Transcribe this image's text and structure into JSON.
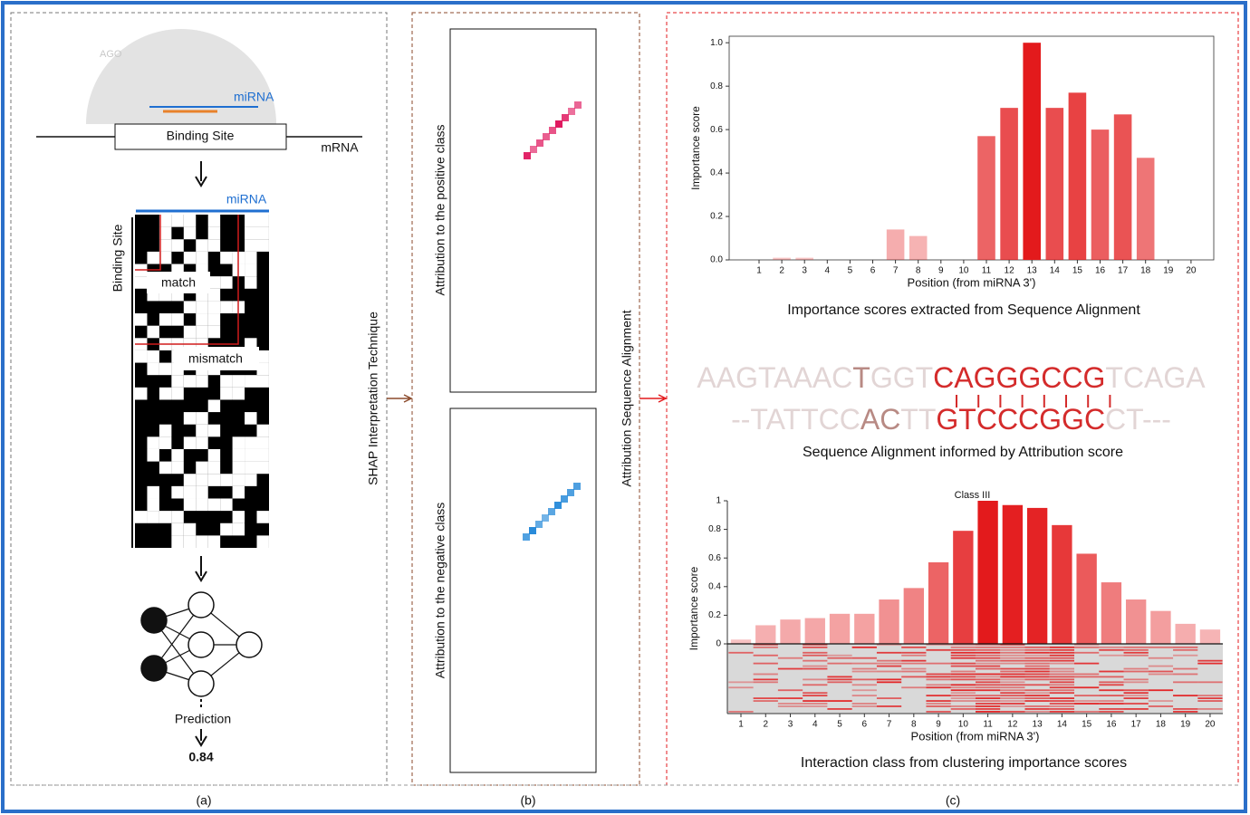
{
  "panel_a": {
    "ago": "AGO",
    "mirna": "miRNA",
    "binding_site": "Binding Site",
    "mrna": "mRNA",
    "matrix_mirna": "miRNA",
    "matrix_binding_site": "Binding Site",
    "match": "match",
    "mismatch": "mismatch",
    "prediction": "Prediction",
    "prediction_value": 0.84,
    "label": "(a)"
  },
  "shap_label": "SHAP Interpretation Technique",
  "panel_b": {
    "positive": "Attribution to the positive class",
    "negative": "Attribution to the negative class",
    "label": "(b)"
  },
  "alignment_label": "Attribution Sequence Alignment",
  "panel_c": {
    "caption_top": "Importance scores extracted from Sequence Alignment",
    "alignment": {
      "top": [
        {
          "text": "AAGTAAAC",
          "style": "faded"
        },
        {
          "text": "T",
          "style": "weak"
        },
        {
          "text": "GGT",
          "style": "faded"
        },
        {
          "text": "CAGGGCCG",
          "style": "strong"
        },
        {
          "text": "TCAGA",
          "style": "faded"
        }
      ],
      "bottom": [
        {
          "text": "--TATTCC",
          "style": "faded"
        },
        {
          "text": "AC",
          "style": "weak"
        },
        {
          "text": "TT",
          "style": "faded"
        },
        {
          "text": "GTCCCGGC",
          "style": "strong"
        },
        {
          "text": "CT---",
          "style": "faded"
        }
      ]
    },
    "caption_alignment": "Sequence Alignment informed by Attribution score",
    "caption_bottom": "Interaction class from clustering importance scores",
    "label": "(c)"
  },
  "chart_data": [
    {
      "type": "bar",
      "xlabel": "Position (from miRNA 3')",
      "ylabel": "Importance score",
      "color": "#e31a1c",
      "categories": [
        "1",
        "2",
        "3",
        "4",
        "5",
        "6",
        "7",
        "8",
        "9",
        "10",
        "11",
        "12",
        "13",
        "14",
        "15",
        "16",
        "17",
        "18",
        "19",
        "20"
      ],
      "values": [
        0,
        0.01,
        0.01,
        0,
        0,
        0,
        0.14,
        0.11,
        0,
        0,
        0.57,
        0.7,
        1.0,
        0.7,
        0.77,
        0.6,
        0.67,
        0.47,
        0,
        0
      ],
      "ylim": [
        0,
        1.03
      ],
      "yticks": [
        {
          "value": 0,
          "label": "0.0"
        },
        0.2,
        0.4,
        0.6,
        0.8,
        {
          "value": 1,
          "label": "1.0"
        }
      ]
    },
    {
      "type": "bar",
      "title": "Class III",
      "xlabel": "Position (from miRNA 3')",
      "ylabel": "Importance score",
      "color": "#e31a1c",
      "categories": [
        "1",
        "2",
        "3",
        "4",
        "5",
        "6",
        "7",
        "8",
        "9",
        "10",
        "11",
        "12",
        "13",
        "14",
        "15",
        "16",
        "17",
        "18",
        "19",
        "20"
      ],
      "values": [
        0.03,
        0.13,
        0.17,
        0.18,
        0.21,
        0.21,
        0.31,
        0.39,
        0.57,
        0.79,
        1.0,
        0.97,
        0.95,
        0.83,
        0.63,
        0.43,
        0.31,
        0.23,
        0.14,
        0.1
      ],
      "ylim": [
        0,
        1
      ],
      "yticks": [
        0,
        0.2,
        0.4,
        0.6,
        0.8,
        1
      ]
    }
  ]
}
